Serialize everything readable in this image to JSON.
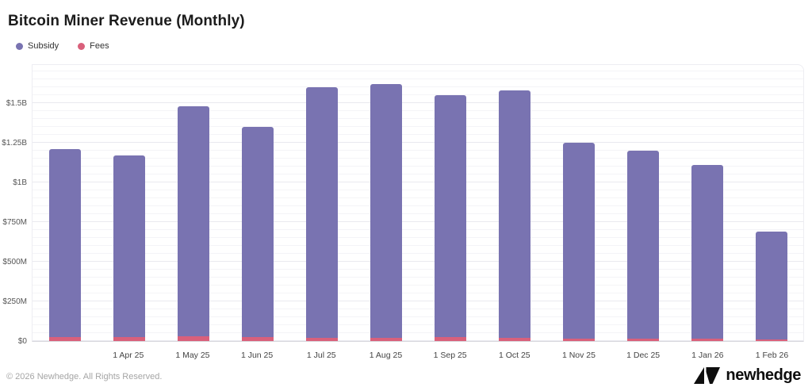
{
  "title": "Bitcoin Miner Revenue (Monthly)",
  "legend": {
    "items": [
      {
        "label": "Subsidy",
        "color": "#7973b1"
      },
      {
        "label": "Fees",
        "color": "#d9607b"
      }
    ]
  },
  "footer": {
    "copyright": "© 2026 Newhedge. All Rights Reserved.",
    "brand_name": "newhedge",
    "brand_icon": "newhedge-triangles-logo-icon"
  },
  "chart_data": {
    "type": "bar",
    "stacked": true,
    "title": "Bitcoin Miner Revenue (Monthly)",
    "xlabel": "",
    "ylabel": "",
    "unit": "USD",
    "ylim_billion_usd": [
      0,
      1.75
    ],
    "grid": "horizontal, minor every $50M, major every $250M",
    "legend_position": "top-left",
    "x_tick_labels": [
      "",
      "1 Apr 25",
      "1 May 25",
      "1 Jun 25",
      "1 Jul 25",
      "1 Aug 25",
      "1 Sep 25",
      "1 Oct 25",
      "1 Nov 25",
      "1 Dec 25",
      "1 Jan 26",
      "1 Feb 26"
    ],
    "y_ticks": [
      {
        "label": "$0",
        "value_billion": 0
      },
      {
        "label": "$250M",
        "value_billion": 0.25
      },
      {
        "label": "$500M",
        "value_billion": 0.5
      },
      {
        "label": "$750M",
        "value_billion": 0.75
      },
      {
        "label": "$1B",
        "value_billion": 1.0
      },
      {
        "label": "$1.25B",
        "value_billion": 1.25
      },
      {
        "label": "$1.5B",
        "value_billion": 1.5
      }
    ],
    "series": [
      {
        "name": "Subsidy",
        "color": "#7973b1",
        "values_billion_usd": [
          1.185,
          1.147,
          1.452,
          1.324,
          1.58,
          1.601,
          1.527,
          1.56,
          1.233,
          1.184,
          1.095,
          0.678
        ]
      },
      {
        "name": "Fees",
        "color": "#d9607b",
        "values_billion_usd": [
          0.025,
          0.023,
          0.028,
          0.026,
          0.02,
          0.019,
          0.023,
          0.02,
          0.017,
          0.016,
          0.015,
          0.012
        ]
      }
    ]
  }
}
